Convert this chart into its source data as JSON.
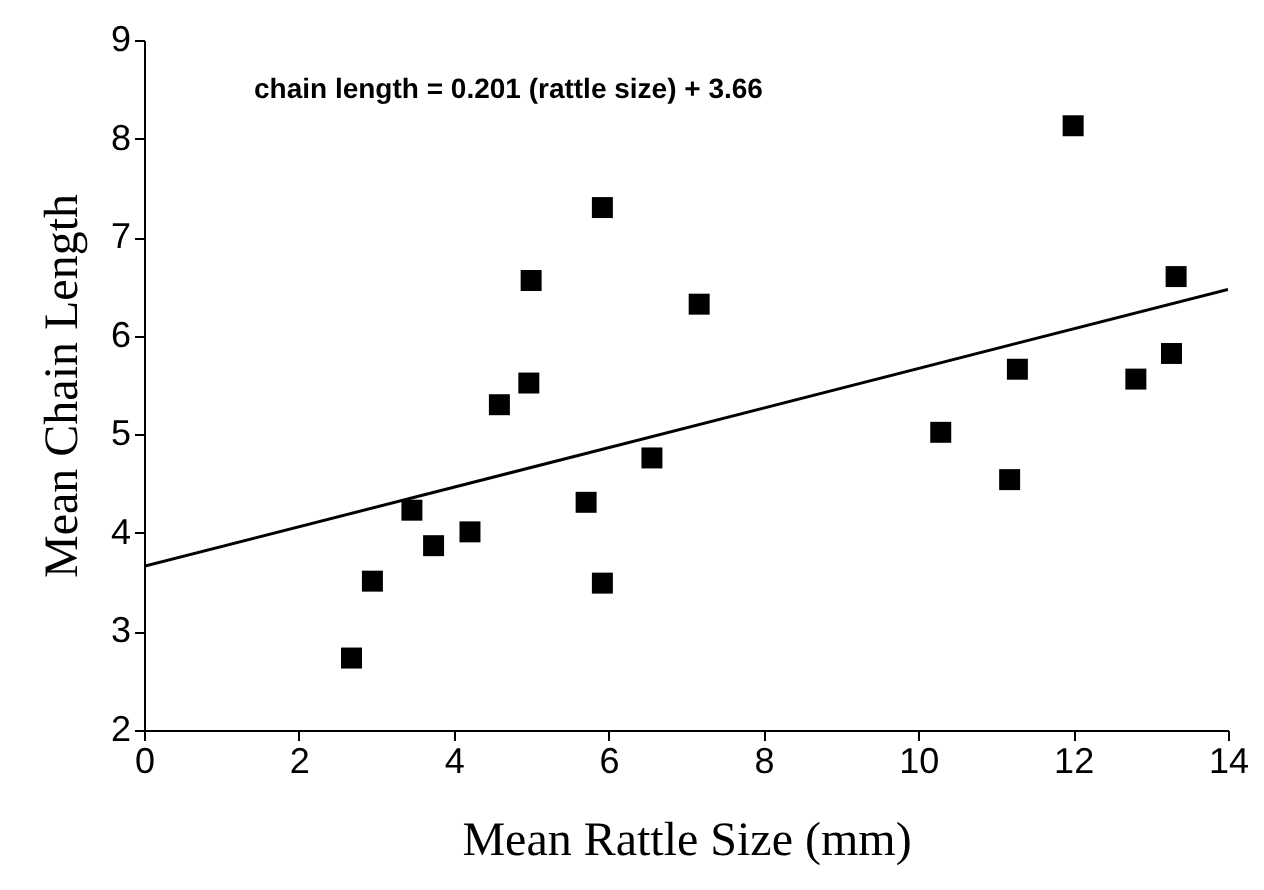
{
  "chart_data": {
    "type": "scatter",
    "xlabel": "Mean Rattle Size (mm)",
    "ylabel": "Mean Chain Length",
    "annotations": [
      "chain length = 0.201 (rattle size) + 3.66"
    ],
    "x": [
      2.68,
      2.95,
      3.46,
      3.74,
      4.21,
      4.59,
      4.97,
      5.0,
      5.71,
      5.92,
      5.92,
      6.56,
      7.17,
      10.29,
      11.18,
      11.28,
      12.0,
      12.81,
      13.27,
      13.33
    ],
    "series": [
      {
        "color": "#000000",
        "marker": "square",
        "values": [
          2.73,
          3.51,
          4.23,
          3.87,
          4.01,
          5.3,
          5.52,
          6.56,
          4.31,
          7.3,
          3.49,
          4.76,
          6.32,
          5.02,
          4.54,
          5.66,
          8.13,
          5.56,
          5.82,
          6.6
        ]
      },
      {
        "type": "line",
        "color": "#000000",
        "x": [
          0,
          14
        ],
        "values": [
          3.66,
          6.47
        ]
      }
    ],
    "xlim": [
      0,
      14
    ],
    "xticks": [
      0,
      2,
      4,
      6,
      8,
      10,
      12,
      14
    ],
    "ylim": [
      2,
      9
    ],
    "yticks": [
      2,
      3,
      4,
      5,
      6,
      7,
      8,
      9
    ],
    "grid": false
  }
}
